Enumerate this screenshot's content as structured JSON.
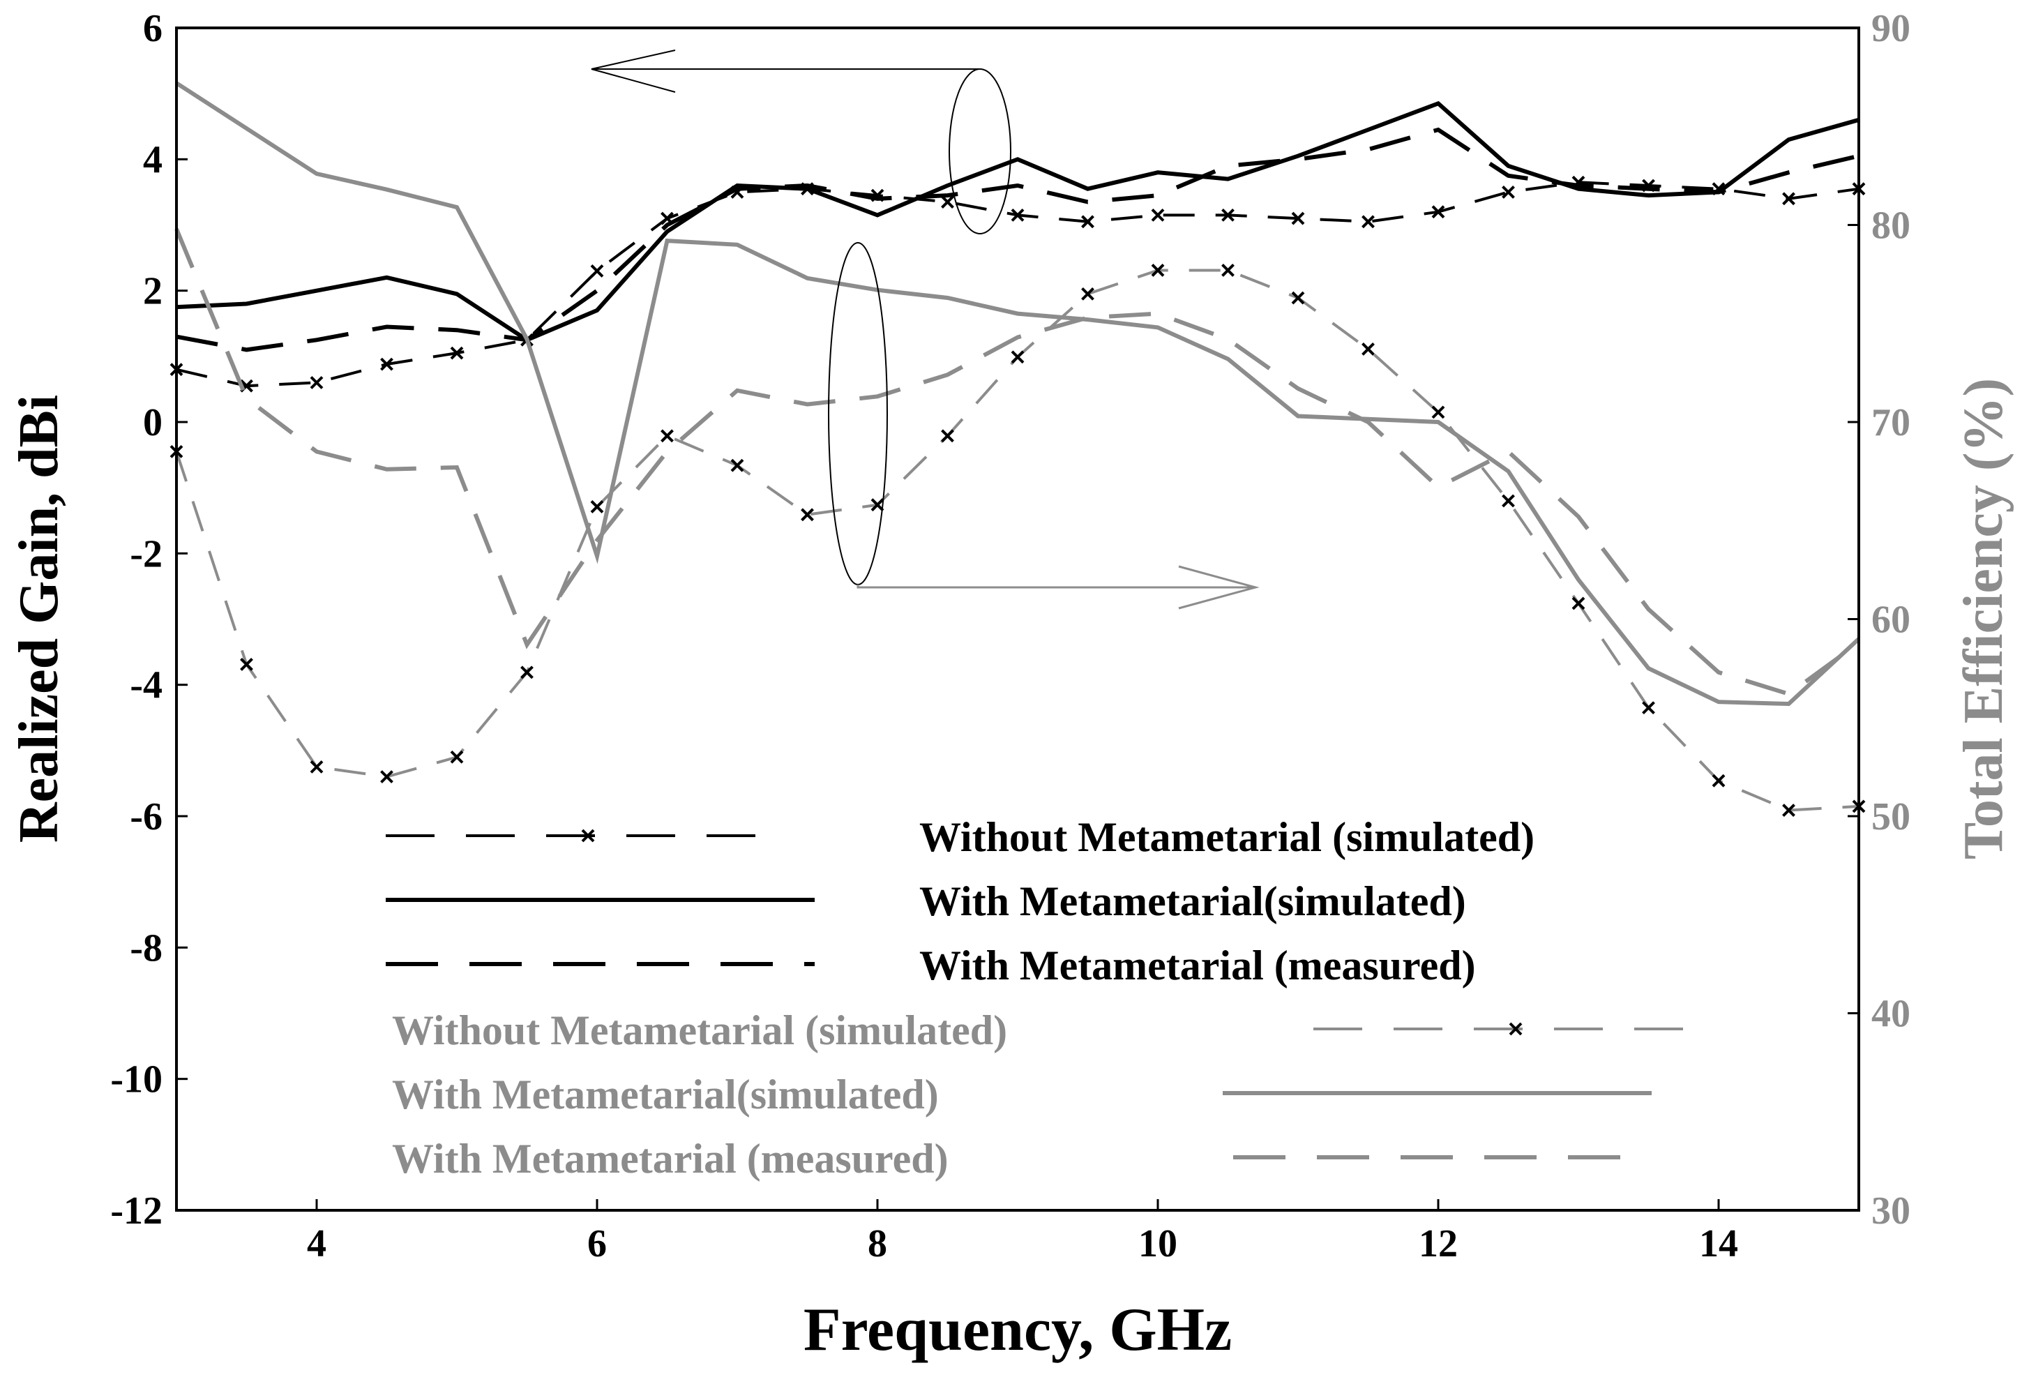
{
  "chart_data": {
    "type": "line",
    "xlabel": "Frequency, GHz",
    "ylabel": "Realized Gain, dBi",
    "y2label": "Total Efficiency (%)",
    "xlim": [
      3,
      15
    ],
    "ylim": [
      -12,
      6
    ],
    "y2lim": [
      30,
      90
    ],
    "xticks": [
      "4",
      "6",
      "8",
      "10",
      "12",
      "14"
    ],
    "yticks": [
      "-12",
      "-10",
      "-8",
      "-6",
      "-4",
      "-2",
      "0",
      "2",
      "4",
      "6"
    ],
    "y2ticks": [
      "30",
      "40",
      "50",
      "60",
      "70",
      "80",
      "90"
    ],
    "grid": false,
    "colors": {
      "gain": "#000000",
      "efficiency": "#8c8c8c"
    },
    "series": [
      {
        "name": "Without Metametarial (simulated)",
        "axis": "left",
        "color": "#000000",
        "style": "dash-marker",
        "x": [
          3,
          3.5,
          4,
          4.5,
          5,
          5.5,
          6,
          6.5,
          7,
          7.5,
          8,
          8.5,
          9,
          9.5,
          10,
          10.5,
          11,
          11.5,
          12,
          12.5,
          13,
          13.5,
          14,
          14.5,
          15
        ],
        "y": [
          0.8,
          0.55,
          0.6,
          0.88,
          1.05,
          1.25,
          2.3,
          3.1,
          3.5,
          3.55,
          3.45,
          3.35,
          3.15,
          3.05,
          3.15,
          3.15,
          3.1,
          3.05,
          3.2,
          3.5,
          3.65,
          3.6,
          3.55,
          3.4,
          3.55
        ]
      },
      {
        "name": "With Metametarial(simulated)",
        "axis": "left",
        "color": "#000000",
        "style": "solid",
        "x": [
          3,
          3.5,
          4,
          4.5,
          5,
          5.5,
          6,
          6.5,
          7,
          7.5,
          8,
          8.5,
          9,
          9.5,
          10,
          10.5,
          11,
          11.5,
          12,
          12.5,
          13,
          13.5,
          14,
          14.5,
          15
        ],
        "y": [
          1.75,
          1.8,
          2.0,
          2.2,
          1.95,
          1.25,
          1.7,
          2.9,
          3.6,
          3.55,
          3.15,
          3.6,
          4.0,
          3.55,
          3.8,
          3.7,
          4.05,
          4.45,
          4.85,
          3.9,
          3.55,
          3.45,
          3.5,
          4.3,
          4.6
        ]
      },
      {
        "name": "With Metametarial (measured)",
        "axis": "left",
        "color": "#000000",
        "style": "long-dash",
        "x": [
          3,
          3.5,
          4,
          4.5,
          5,
          5.5,
          6,
          6.5,
          7,
          7.5,
          8,
          8.5,
          9,
          9.5,
          10,
          10.5,
          11,
          11.5,
          12,
          12.5,
          13,
          13.5,
          14,
          14.5,
          15
        ],
        "y": [
          1.3,
          1.1,
          1.25,
          1.45,
          1.4,
          1.25,
          2.0,
          3.0,
          3.55,
          3.6,
          3.4,
          3.45,
          3.6,
          3.35,
          3.45,
          3.9,
          4.0,
          4.15,
          4.45,
          3.75,
          3.6,
          3.55,
          3.5,
          3.8,
          4.05
        ]
      },
      {
        "name": "Without Metametarial (simulated)",
        "axis": "right",
        "color": "#8c8c8c",
        "style": "dash-marker",
        "x": [
          3,
          3.5,
          4,
          4.5,
          5,
          5.5,
          6,
          6.5,
          7,
          7.5,
          8,
          8.5,
          9,
          9.5,
          10,
          10.5,
          11,
          11.5,
          12,
          12.5,
          13,
          13.5,
          14,
          14.5,
          15
        ],
        "y": [
          68.5,
          57.7,
          52.5,
          52.0,
          53.0,
          57.3,
          65.7,
          69.3,
          67.8,
          65.3,
          65.8,
          69.3,
          73.3,
          76.5,
          77.7,
          77.7,
          76.3,
          73.7,
          70.5,
          66.0,
          60.8,
          55.5,
          51.8,
          50.3,
          50.5
        ]
      },
      {
        "name": "With Metametarial(simulated)",
        "axis": "right",
        "color": "#8c8c8c",
        "style": "solid",
        "x": [
          3,
          4,
          4.5,
          5,
          5.5,
          6,
          6.5,
          7,
          7.5,
          8,
          8.5,
          9,
          9.5,
          10,
          10.5,
          11,
          12,
          12.5,
          13,
          13.5,
          14,
          14.5,
          15
        ],
        "y": [
          87.2,
          82.6,
          81.8,
          80.9,
          74.2,
          63.2,
          79.2,
          79.0,
          77.3,
          76.7,
          76.3,
          75.5,
          75.2,
          74.8,
          73.2,
          70.3,
          70.0,
          67.5,
          62.0,
          57.5,
          55.8,
          55.7,
          59.0
        ]
      },
      {
        "name": "With Metametarial (measured)",
        "axis": "right",
        "color": "#8c8c8c",
        "style": "long-dash",
        "x": [
          3,
          3.5,
          4,
          4.5,
          5,
          5.5,
          6,
          6.5,
          7,
          7.5,
          8,
          8.5,
          9,
          9.5,
          10,
          10.5,
          11,
          11.5,
          12,
          12.5,
          13,
          13.5,
          14,
          14.5,
          15
        ],
        "y": [
          79.8,
          71.2,
          68.5,
          67.6,
          67.7,
          58.7,
          64.0,
          68.5,
          71.6,
          70.9,
          71.3,
          72.4,
          74.3,
          75.3,
          75.5,
          74.2,
          71.7,
          70.0,
          66.7,
          68.5,
          65.2,
          60.5,
          57.3,
          56.2,
          58.8
        ]
      }
    ]
  }
}
